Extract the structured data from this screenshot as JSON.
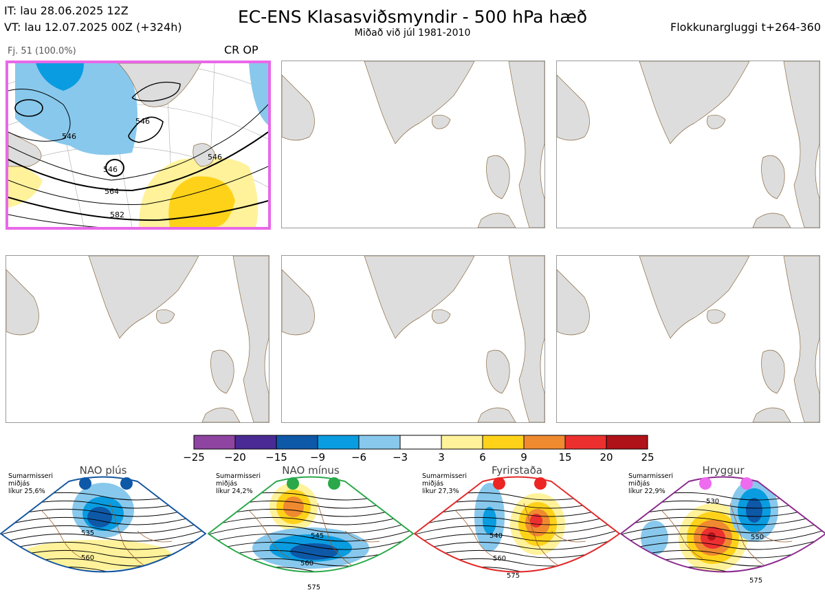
{
  "header": {
    "it_line": "IT: lau 28.06.2025 12Z",
    "vt_line": "VT: lau 12.07.2025 00Z  (+324h)",
    "title": "EC-ENS Klasasviðsmyndir - 500 hPa hæð",
    "subtitle": "Miðað við júl 1981-2010",
    "window": "Flokkunargluggi t+264-360"
  },
  "panel1": {
    "label": "Fj. 51 (100.0%)",
    "tag": "CR OP",
    "contours": [
      "546",
      "546",
      "546",
      "546",
      "564",
      "582"
    ],
    "highlight_color": "#e868e8"
  },
  "colorbar": {
    "ticks": [
      "−25",
      "−20",
      "−15",
      "−9",
      "−6",
      "−3",
      "3",
      "6",
      "9",
      "15",
      "20",
      "25"
    ],
    "colors": [
      "#8e44a0",
      "#4a2a94",
      "#0e58a8",
      "#0a9ce0",
      "#88c8ec",
      "#ffffff",
      "#fff29a",
      "#ffd21a",
      "#f08a30",
      "#ec3030",
      "#b0121a"
    ]
  },
  "regimes": [
    {
      "name": "NAO plús",
      "note": "Sumarmisseri\nmiðjás\nlíkur 25,6%",
      "frame": "#1456a0",
      "dot": "#0e58a8",
      "contours": [
        "535",
        "560"
      ]
    },
    {
      "name": "NAO mínus",
      "note": "Sumarmisseri\nmiðjás\nlíkur 24,2%",
      "frame": "#2aa84a",
      "dot": "#2aa84a",
      "contours": [
        "545",
        "560",
        "575"
      ]
    },
    {
      "name": "Fyrirstaða",
      "note": "Sumarmisseri\nmiðjás\nlíkur 27,3%",
      "frame": "#e22a2a",
      "dot": "#ec2424",
      "contours": [
        "540",
        "560",
        "575"
      ]
    },
    {
      "name": "Hryggur",
      "note": "Sumarmisseri\nmiðjás\nlíkur 22,9%",
      "frame": "#8a2a8e",
      "dot": "#ee6aee",
      "contours": [
        "530",
        "550",
        "575"
      ]
    }
  ]
}
